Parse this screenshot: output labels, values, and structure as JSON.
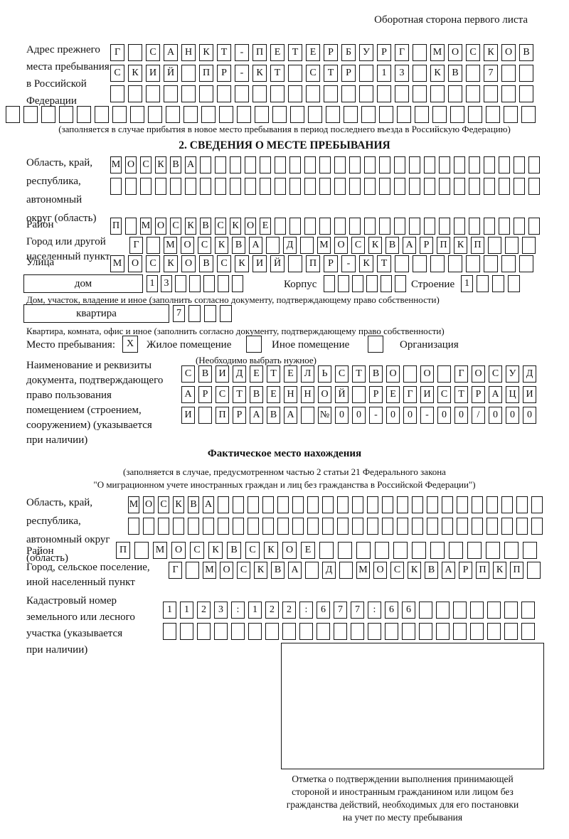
{
  "page": {
    "corner_note": "Оборотная сторона первого листа"
  },
  "prev_address": {
    "label_lines": [
      "Адрес прежнего",
      "места пребывания",
      "в Российской",
      "Федерации"
    ],
    "rows": [
      "Г САНКТ-ПЕТЕРБУРГ МОСКОВ",
      "СКИЙ ПР-КТ СТР 13 КВ 7",
      ""
    ],
    "extra_row": "",
    "note": "(заполняется в случае прибытия в новое место пребывания в период последнего въезда в Российскую Федерацию)"
  },
  "section2": {
    "title": "2. СВЕДЕНИЯ О МЕСТЕ ПРЕБЫВАНИЯ",
    "oblast": {
      "label_lines": [
        "Область, край,",
        "республика,",
        "автономный",
        "округ (область)"
      ],
      "rows": [
        "МОСКВА",
        ""
      ]
    },
    "raion": {
      "label": "Район",
      "value": "П МОСКВСКОЕ"
    },
    "gorod": {
      "label_lines": [
        "Город или другой",
        "населенный пункт"
      ],
      "value": "Г МОСКВА Д МОСКВАРПКП"
    },
    "ulitsa": {
      "label": "Улица",
      "value": "МОСКОВСКИЙ ПР-КТ"
    },
    "dom": {
      "label": "дом",
      "value": "13",
      "korpus_label": "Корпус",
      "korpus_value": "",
      "stroenie_label": "Строение",
      "stroenie_value": "1"
    },
    "dom_note": "Дом, участок, владение и иное (заполнить согласно документу, подтверждающему право собственности)",
    "kvartira": {
      "label": "квартира",
      "value": "7"
    },
    "kvartira_note": "Квартира, комната, офис и иное (заполнить согласно документу, подтверждающему право собственности)",
    "stay_type": {
      "label": "Место пребывания:",
      "options": [
        {
          "label": "Жилое помещение",
          "value": "X"
        },
        {
          "label": "Иное помещение",
          "value": ""
        },
        {
          "label": "Организация",
          "value": ""
        }
      ],
      "note": "(Необходимо выбрать нужное)"
    },
    "document": {
      "label_lines": [
        "Наименование и реквизиты",
        "документа, подтверждающего",
        "право пользования",
        "помещением (строением,",
        "сооружением) (указывается",
        "при наличии)"
      ],
      "rows": [
        "СВИДЕТЕЛЬСТВО О ГОСУД",
        "АРСТВЕННОЙ РЕГИСТРАЦИ",
        "И ПРАВА №00-00-00/000"
      ]
    }
  },
  "fact_location": {
    "title": "Фактическое место нахождения",
    "note_lines": [
      "(заполняется в случае, предусмотренном частью 2 статьи 21 Федерального закона",
      "\"О миграционном учете иностранных граждан и лиц без гражданства в Российской Федерации\")"
    ],
    "oblast": {
      "label_lines": [
        "Область, край,",
        "республика,",
        "автономный округ",
        "(область)"
      ],
      "rows": [
        "МОСКВА",
        ""
      ]
    },
    "raion": {
      "label": "Район",
      "value": "П МОСКВСКОЕ"
    },
    "gorod": {
      "label_lines": [
        "Город, сельское поселение,",
        "иной населенный пункт"
      ],
      "value": "Г МОСКВА Д МОСКВАРПКП"
    },
    "kadastr": {
      "label_lines": [
        "Кадастровый номер",
        "земельного или лесного",
        "участка (указывается",
        "при наличии)"
      ],
      "rows": [
        "1123:122:677:66",
        ""
      ]
    }
  },
  "stamp": {
    "caption_lines": [
      "Отметка о подтверждении выполнения принимающей",
      "стороной и иностранным гражданином или лицом без",
      "гражданства действий, необходимых для его постановки",
      "на учет по месту пребывания"
    ]
  }
}
